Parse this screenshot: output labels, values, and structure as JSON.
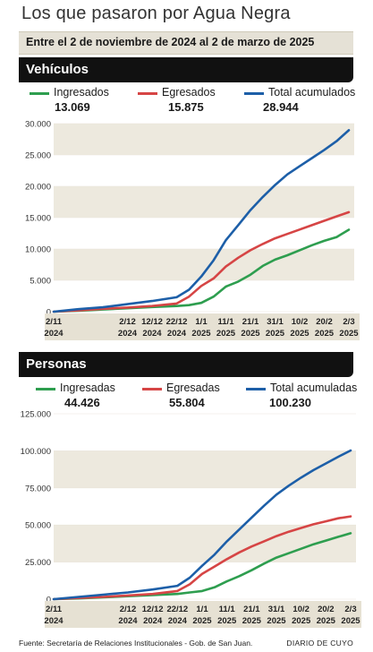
{
  "title": "Los que pasaron por Agua Negra",
  "subtitle": "Entre el 2 de noviembre de 2024 al 2 de marzo de 2025",
  "footer": {
    "source": "Fuente: Secretaría de Relaciones Institucionales - Gob. de San Juan.",
    "brand": "DIARIO DE CUYO"
  },
  "colors": {
    "green": "#2e9e4f",
    "red": "#d64545",
    "blue": "#1d5fa8",
    "band": "#ede9de",
    "axis": "#e6e1d3"
  },
  "chart_data": [
    {
      "type": "line",
      "title": "Vehículos",
      "ylim": [
        0,
        30000
      ],
      "yticks": [
        0,
        5000,
        10000,
        15000,
        20000,
        25000,
        30000
      ],
      "ytick_labels": [
        "0",
        "5.000",
        "10.000",
        "15.000",
        "20.000",
        "25.000",
        "30.000"
      ],
      "xlim": [
        "2024-11-02",
        "2025-03-02"
      ],
      "xticks": [
        {
          "date": "2024-11-02",
          "day": "2/11",
          "year": "2024"
        },
        {
          "date": "2024-12-02",
          "day": "2/12",
          "year": "2024"
        },
        {
          "date": "2024-12-12",
          "day": "12/12",
          "year": "2024"
        },
        {
          "date": "2024-12-22",
          "day": "22/12",
          "year": "2024"
        },
        {
          "date": "2025-01-01",
          "day": "1/1",
          "year": "2025"
        },
        {
          "date": "2025-01-11",
          "day": "11/1",
          "year": "2025"
        },
        {
          "date": "2025-01-21",
          "day": "21/1",
          "year": "2025"
        },
        {
          "date": "2025-01-31",
          "day": "31/1",
          "year": "2025"
        },
        {
          "date": "2025-02-10",
          "day": "10/2",
          "year": "2025"
        },
        {
          "date": "2025-02-20",
          "day": "20/2",
          "year": "2025"
        },
        {
          "date": "2025-03-02",
          "day": "2/3",
          "year": "2025"
        }
      ],
      "x": [
        "2024-11-02",
        "2024-11-12",
        "2024-11-22",
        "2024-12-02",
        "2024-12-12",
        "2024-12-22",
        "2024-12-27",
        "2025-01-01",
        "2025-01-06",
        "2025-01-11",
        "2025-01-16",
        "2025-01-21",
        "2025-01-26",
        "2025-01-31",
        "2025-02-05",
        "2025-02-10",
        "2025-02-15",
        "2025-02-20",
        "2025-02-25",
        "2025-03-02"
      ],
      "series": [
        {
          "name": "Ingresados",
          "total": "13.069",
          "color": "#2e9e4f",
          "values": [
            0,
            150,
            350,
            550,
            750,
            900,
            1050,
            1400,
            2400,
            4000,
            4800,
            5900,
            7300,
            8300,
            9000,
            9800,
            10600,
            11300,
            11900,
            13069
          ]
        },
        {
          "name": "Egresados",
          "total": "15.875",
          "color": "#d64545",
          "values": [
            0,
            200,
            450,
            650,
            900,
            1300,
            2400,
            4100,
            5300,
            7200,
            8600,
            9800,
            10800,
            11700,
            12400,
            13100,
            13800,
            14500,
            15200,
            15875
          ]
        },
        {
          "name": "Total acumulados",
          "total": "28.944",
          "color": "#1d5fa8",
          "values": [
            0,
            400,
            700,
            1200,
            1700,
            2300,
            3500,
            5600,
            8200,
            11400,
            13800,
            16200,
            18300,
            20200,
            21900,
            23200,
            24500,
            25800,
            27200,
            28944
          ]
        }
      ]
    },
    {
      "type": "line",
      "title": "Personas",
      "ylim": [
        0,
        125000
      ],
      "yticks": [
        0,
        25000,
        50000,
        75000,
        100000,
        125000
      ],
      "ytick_labels": [
        "0",
        "25.000",
        "50.000",
        "75.000",
        "100.000",
        "125.000"
      ],
      "xlim": [
        "2024-11-02",
        "2025-03-02"
      ],
      "xticks": [
        {
          "date": "2024-11-02",
          "day": "2/11",
          "year": "2024"
        },
        {
          "date": "2024-12-02",
          "day": "2/12",
          "year": "2024"
        },
        {
          "date": "2024-12-12",
          "day": "12/12",
          "year": "2024"
        },
        {
          "date": "2024-12-22",
          "day": "22/12",
          "year": "2024"
        },
        {
          "date": "2025-01-01",
          "day": "1/1",
          "year": "2025"
        },
        {
          "date": "2025-01-11",
          "day": "11/1",
          "year": "2025"
        },
        {
          "date": "2025-01-21",
          "day": "21/1",
          "year": "2025"
        },
        {
          "date": "2025-01-31",
          "day": "31/1",
          "year": "2025"
        },
        {
          "date": "2025-02-10",
          "day": "10/2",
          "year": "2025"
        },
        {
          "date": "2025-02-20",
          "day": "20/2",
          "year": "2025"
        },
        {
          "date": "2025-03-02",
          "day": "2/3",
          "year": "2025"
        }
      ],
      "x": [
        "2024-11-02",
        "2024-11-12",
        "2024-11-22",
        "2024-12-02",
        "2024-12-12",
        "2024-12-22",
        "2024-12-27",
        "2025-01-01",
        "2025-01-06",
        "2025-01-11",
        "2025-01-16",
        "2025-01-21",
        "2025-01-26",
        "2025-01-31",
        "2025-02-05",
        "2025-02-10",
        "2025-02-15",
        "2025-02-20",
        "2025-02-25",
        "2025-03-02"
      ],
      "series": [
        {
          "name": "Ingresadas",
          "total": "44.426",
          "color": "#2e9e4f",
          "values": [
            0,
            500,
            1200,
            2000,
            2800,
            3500,
            4500,
            5500,
            8000,
            12000,
            15500,
            19500,
            24000,
            28000,
            31000,
            34000,
            37000,
            39500,
            42000,
            44426
          ]
        },
        {
          "name": "Egresadas",
          "total": "55.804",
          "color": "#d64545",
          "values": [
            0,
            800,
            1500,
            2500,
            3500,
            5500,
            10000,
            17000,
            22000,
            27000,
            31500,
            35500,
            39000,
            42500,
            45500,
            48000,
            50500,
            52500,
            54500,
            55804
          ]
        },
        {
          "name": "Total acumuladas",
          "total": "100.230",
          "color": "#1d5fa8",
          "values": [
            0,
            1500,
            3000,
            4500,
            6500,
            9000,
            14500,
            22500,
            30000,
            39000,
            47000,
            55000,
            63000,
            70500,
            76500,
            82000,
            87000,
            91500,
            96000,
            100230
          ]
        }
      ]
    }
  ]
}
